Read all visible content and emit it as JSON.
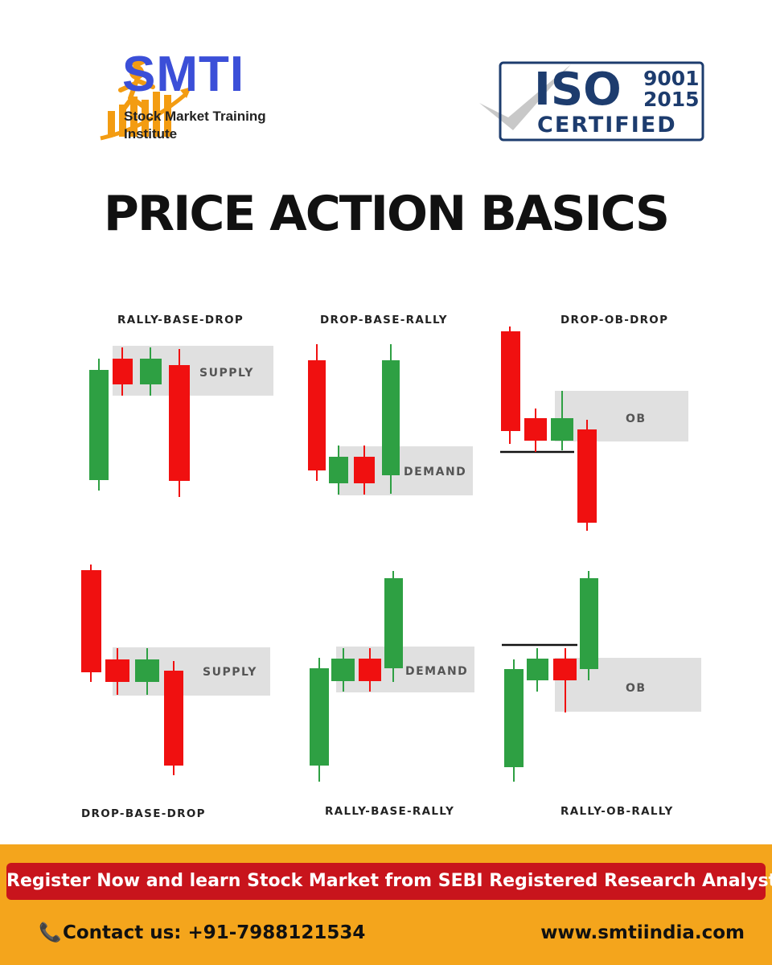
{
  "brand": {
    "name": "SMTI",
    "subtitle_line1": "Stock Market Training",
    "subtitle_line2": "Institute",
    "logo_icon": "graduate-climbing-bar-chart-icon"
  },
  "iso": {
    "word": "ISO",
    "number1": "9001",
    "number2": "2015",
    "certified": "CERTIFIED",
    "icon": "checkmark-icon"
  },
  "title": "PRICE ACTION BASICS",
  "patterns": [
    {
      "label": "RALLY-BASE-DROP",
      "zone": "SUPPLY"
    },
    {
      "label": "DROP-BASE-RALLY",
      "zone": "DEMAND"
    },
    {
      "label": "DROP-OB-DROP",
      "zone": "OB"
    },
    {
      "label": "DROP-BASE-DROP",
      "zone": "SUPPLY"
    },
    {
      "label": "RALLY-BASE-RALLY",
      "zone": "DEMAND"
    },
    {
      "label": "RALLY-OB-RALLY",
      "zone": "OB"
    }
  ],
  "footer": {
    "banner": "Register Now and learn Stock Market from SEBI Registered Research Analyst",
    "contact": "Contact us: +91-7988121534",
    "phone_icon": "phone-icon",
    "website": "www.smtiindia.com"
  },
  "colors": {
    "brand_blue": "#3b4fd8",
    "bull_green": "#2ea043",
    "bear_red": "#f01010",
    "zone_gray": "#e0e0e0",
    "footer_orange": "#f4a51c",
    "banner_red": "#c8141c",
    "iso_navy": "#1d3c6e"
  }
}
